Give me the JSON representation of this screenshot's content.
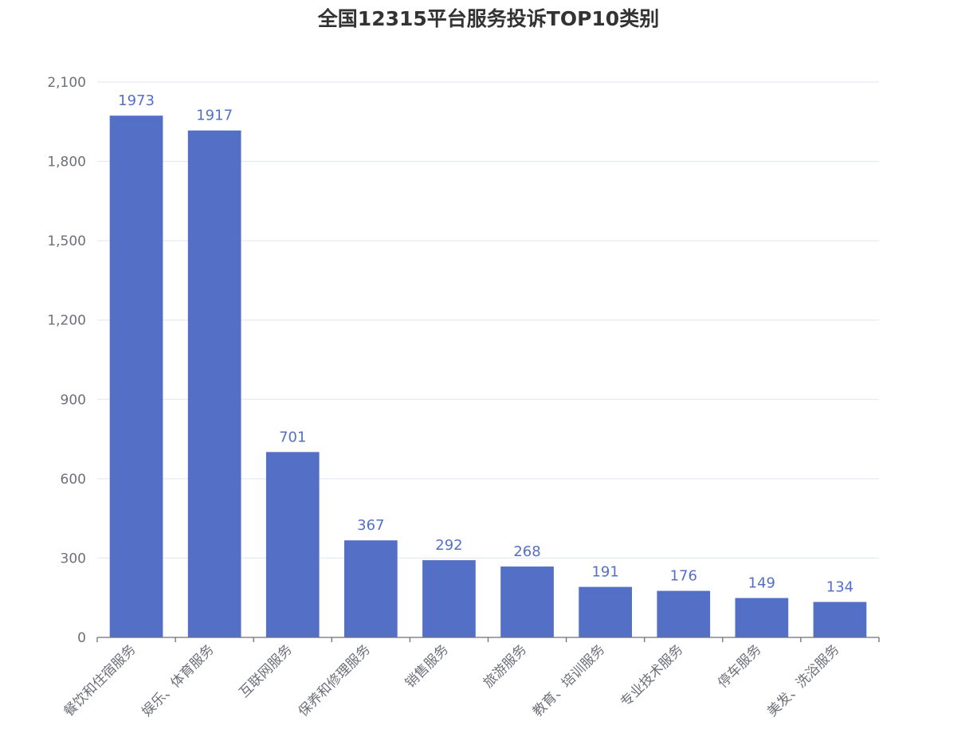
{
  "chart_data": {
    "type": "bar",
    "title": "全国12315平台服务投诉TOP10类别",
    "categories": [
      "餐饮和住宿服务",
      "娱乐、体育服务",
      "互联网服务",
      "保养和修理服务",
      "销售服务",
      "旅游服务",
      "教育、培训服务",
      "专业技术服务",
      "停车服务",
      "美发、洗浴服务"
    ],
    "values": [
      1973,
      1917,
      701,
      367,
      292,
      268,
      191,
      176,
      149,
      134
    ],
    "ylim": [
      0,
      2100
    ],
    "yticks": [
      0,
      300,
      600,
      900,
      1200,
      1500,
      1800,
      2100
    ],
    "ytick_labels": [
      "0",
      "300",
      "600",
      "900",
      "1,200",
      "1,500",
      "1,800",
      "2,100"
    ],
    "grid": true,
    "bar_color": "#5470c6",
    "grid_color": "#e0e6f1",
    "axis_color": "#6e7079"
  }
}
